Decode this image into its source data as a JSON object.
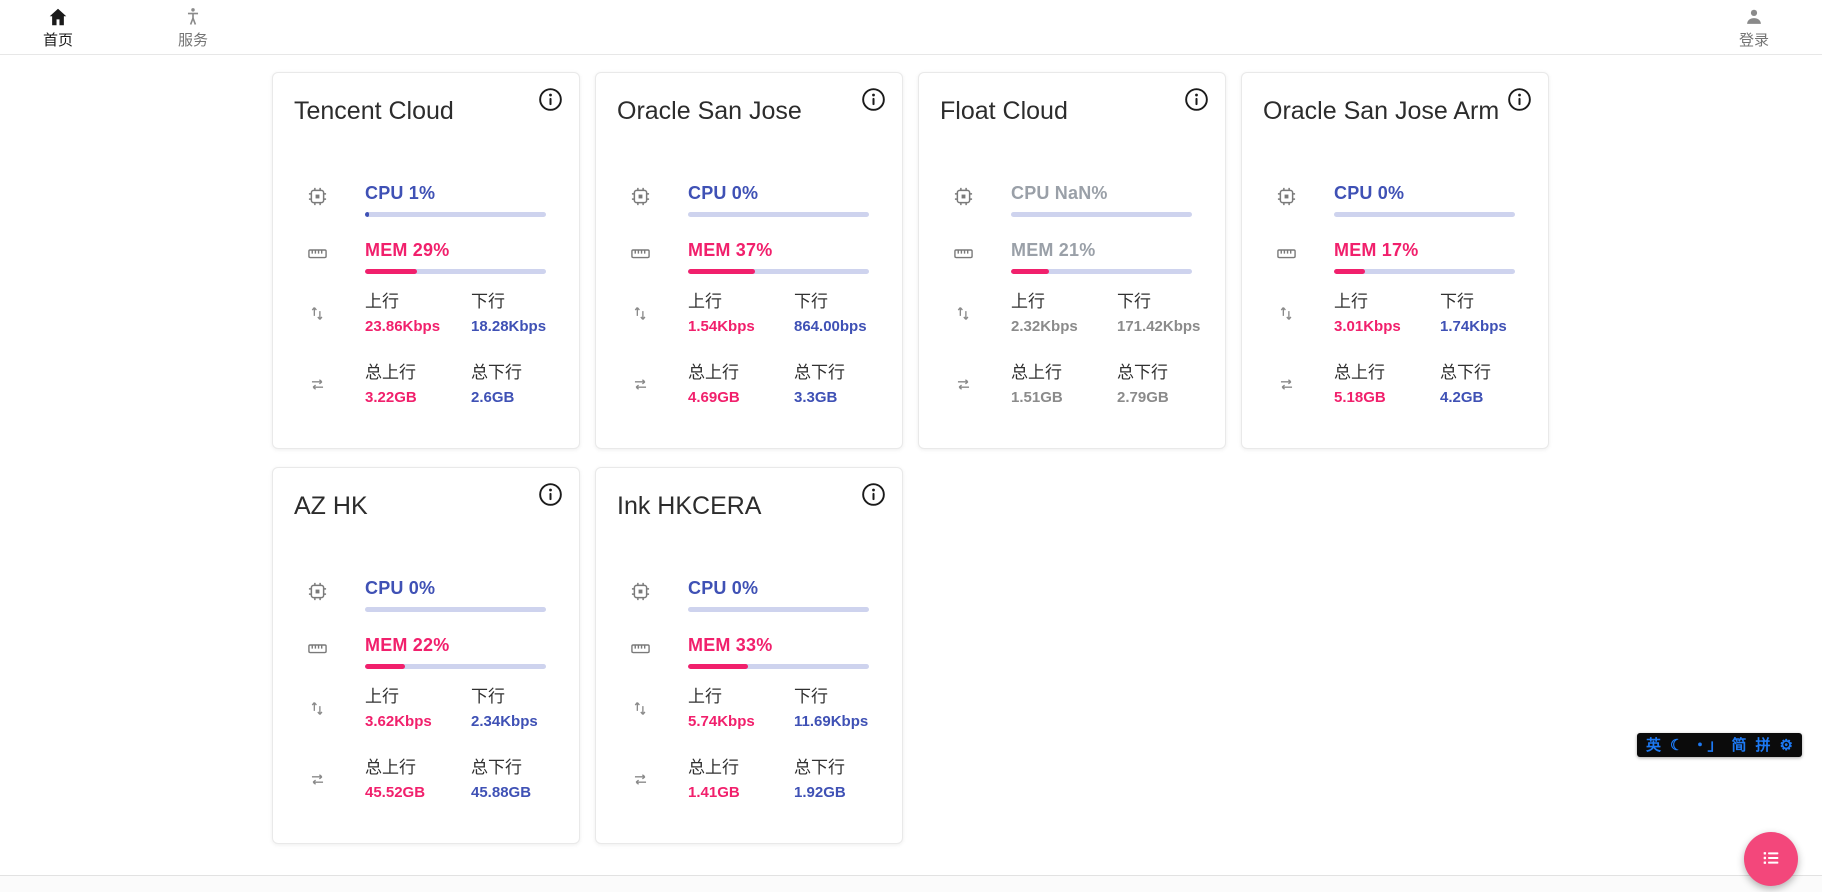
{
  "nav": {
    "home": {
      "label": "首页"
    },
    "service": {
      "label": "服务"
    },
    "login": {
      "label": "登录"
    }
  },
  "labels": {
    "upload": "上行",
    "download": "下行",
    "total_upload": "总上行",
    "total_download": "总下行"
  },
  "servers": [
    {
      "name": "Tencent Cloud",
      "cpu_text": "CPU 1%",
      "cpu_percent": 1,
      "mem_text": "MEM 29%",
      "mem_percent": 29,
      "upload": "23.86Kbps",
      "download": "18.28Kbps",
      "total_upload": "3.22GB",
      "total_download": "2.6GB",
      "offline": false
    },
    {
      "name": "Oracle San Jose",
      "cpu_text": "CPU 0%",
      "cpu_percent": 0,
      "mem_text": "MEM 37%",
      "mem_percent": 37,
      "upload": "1.54Kbps",
      "download": "864.00bps",
      "total_upload": "4.69GB",
      "total_download": "3.3GB",
      "offline": false
    },
    {
      "name": "Float Cloud",
      "cpu_text": "CPU NaN%",
      "cpu_percent": 0,
      "mem_text": "MEM 21%",
      "mem_percent": 21,
      "upload": "2.32Kbps",
      "download": "171.42Kbps",
      "total_upload": "1.51GB",
      "total_download": "2.79GB",
      "offline": true
    },
    {
      "name": "Oracle San Jose Arm",
      "cpu_text": "CPU 0%",
      "cpu_percent": 0,
      "mem_text": "MEM 17%",
      "mem_percent": 17,
      "upload": "3.01Kbps",
      "download": "1.74Kbps",
      "total_upload": "5.18GB",
      "total_download": "4.2GB",
      "offline": false
    },
    {
      "name": "AZ HK",
      "cpu_text": "CPU 0%",
      "cpu_percent": 0,
      "mem_text": "MEM 22%",
      "mem_percent": 22,
      "upload": "3.62Kbps",
      "download": "2.34Kbps",
      "total_upload": "45.52GB",
      "total_download": "45.88GB",
      "offline": false
    },
    {
      "name": "Ink HKCERA",
      "cpu_text": "CPU 0%",
      "cpu_percent": 0,
      "mem_text": "MEM 33%",
      "mem_percent": 33,
      "upload": "5.74Kbps",
      "download": "11.69Kbps",
      "total_upload": "1.41GB",
      "total_download": "1.92GB",
      "offline": false
    }
  ],
  "ime_toolbar": {
    "items": [
      {
        "name": "english-mode-indicator",
        "glyph": "英"
      },
      {
        "name": "moon-icon",
        "glyph": "☾"
      },
      {
        "name": "punctuation-mode-indicator",
        "glyph": "・」"
      },
      {
        "name": "simplified-chinese-indicator",
        "glyph": "简"
      },
      {
        "name": "pinyin-indicator",
        "glyph": "拼"
      }
    ],
    "gear_item": {
      "name": "gear-icon",
      "glyph": "⚙"
    }
  },
  "colors": {
    "accent_blue": "#3f51b5",
    "accent_pink": "#f1206c",
    "progress_track": "#ced3ee",
    "fab_pink": "#f3477b",
    "ime_blue": "#1d79f3",
    "offline_gray": "#8b8b8b"
  }
}
